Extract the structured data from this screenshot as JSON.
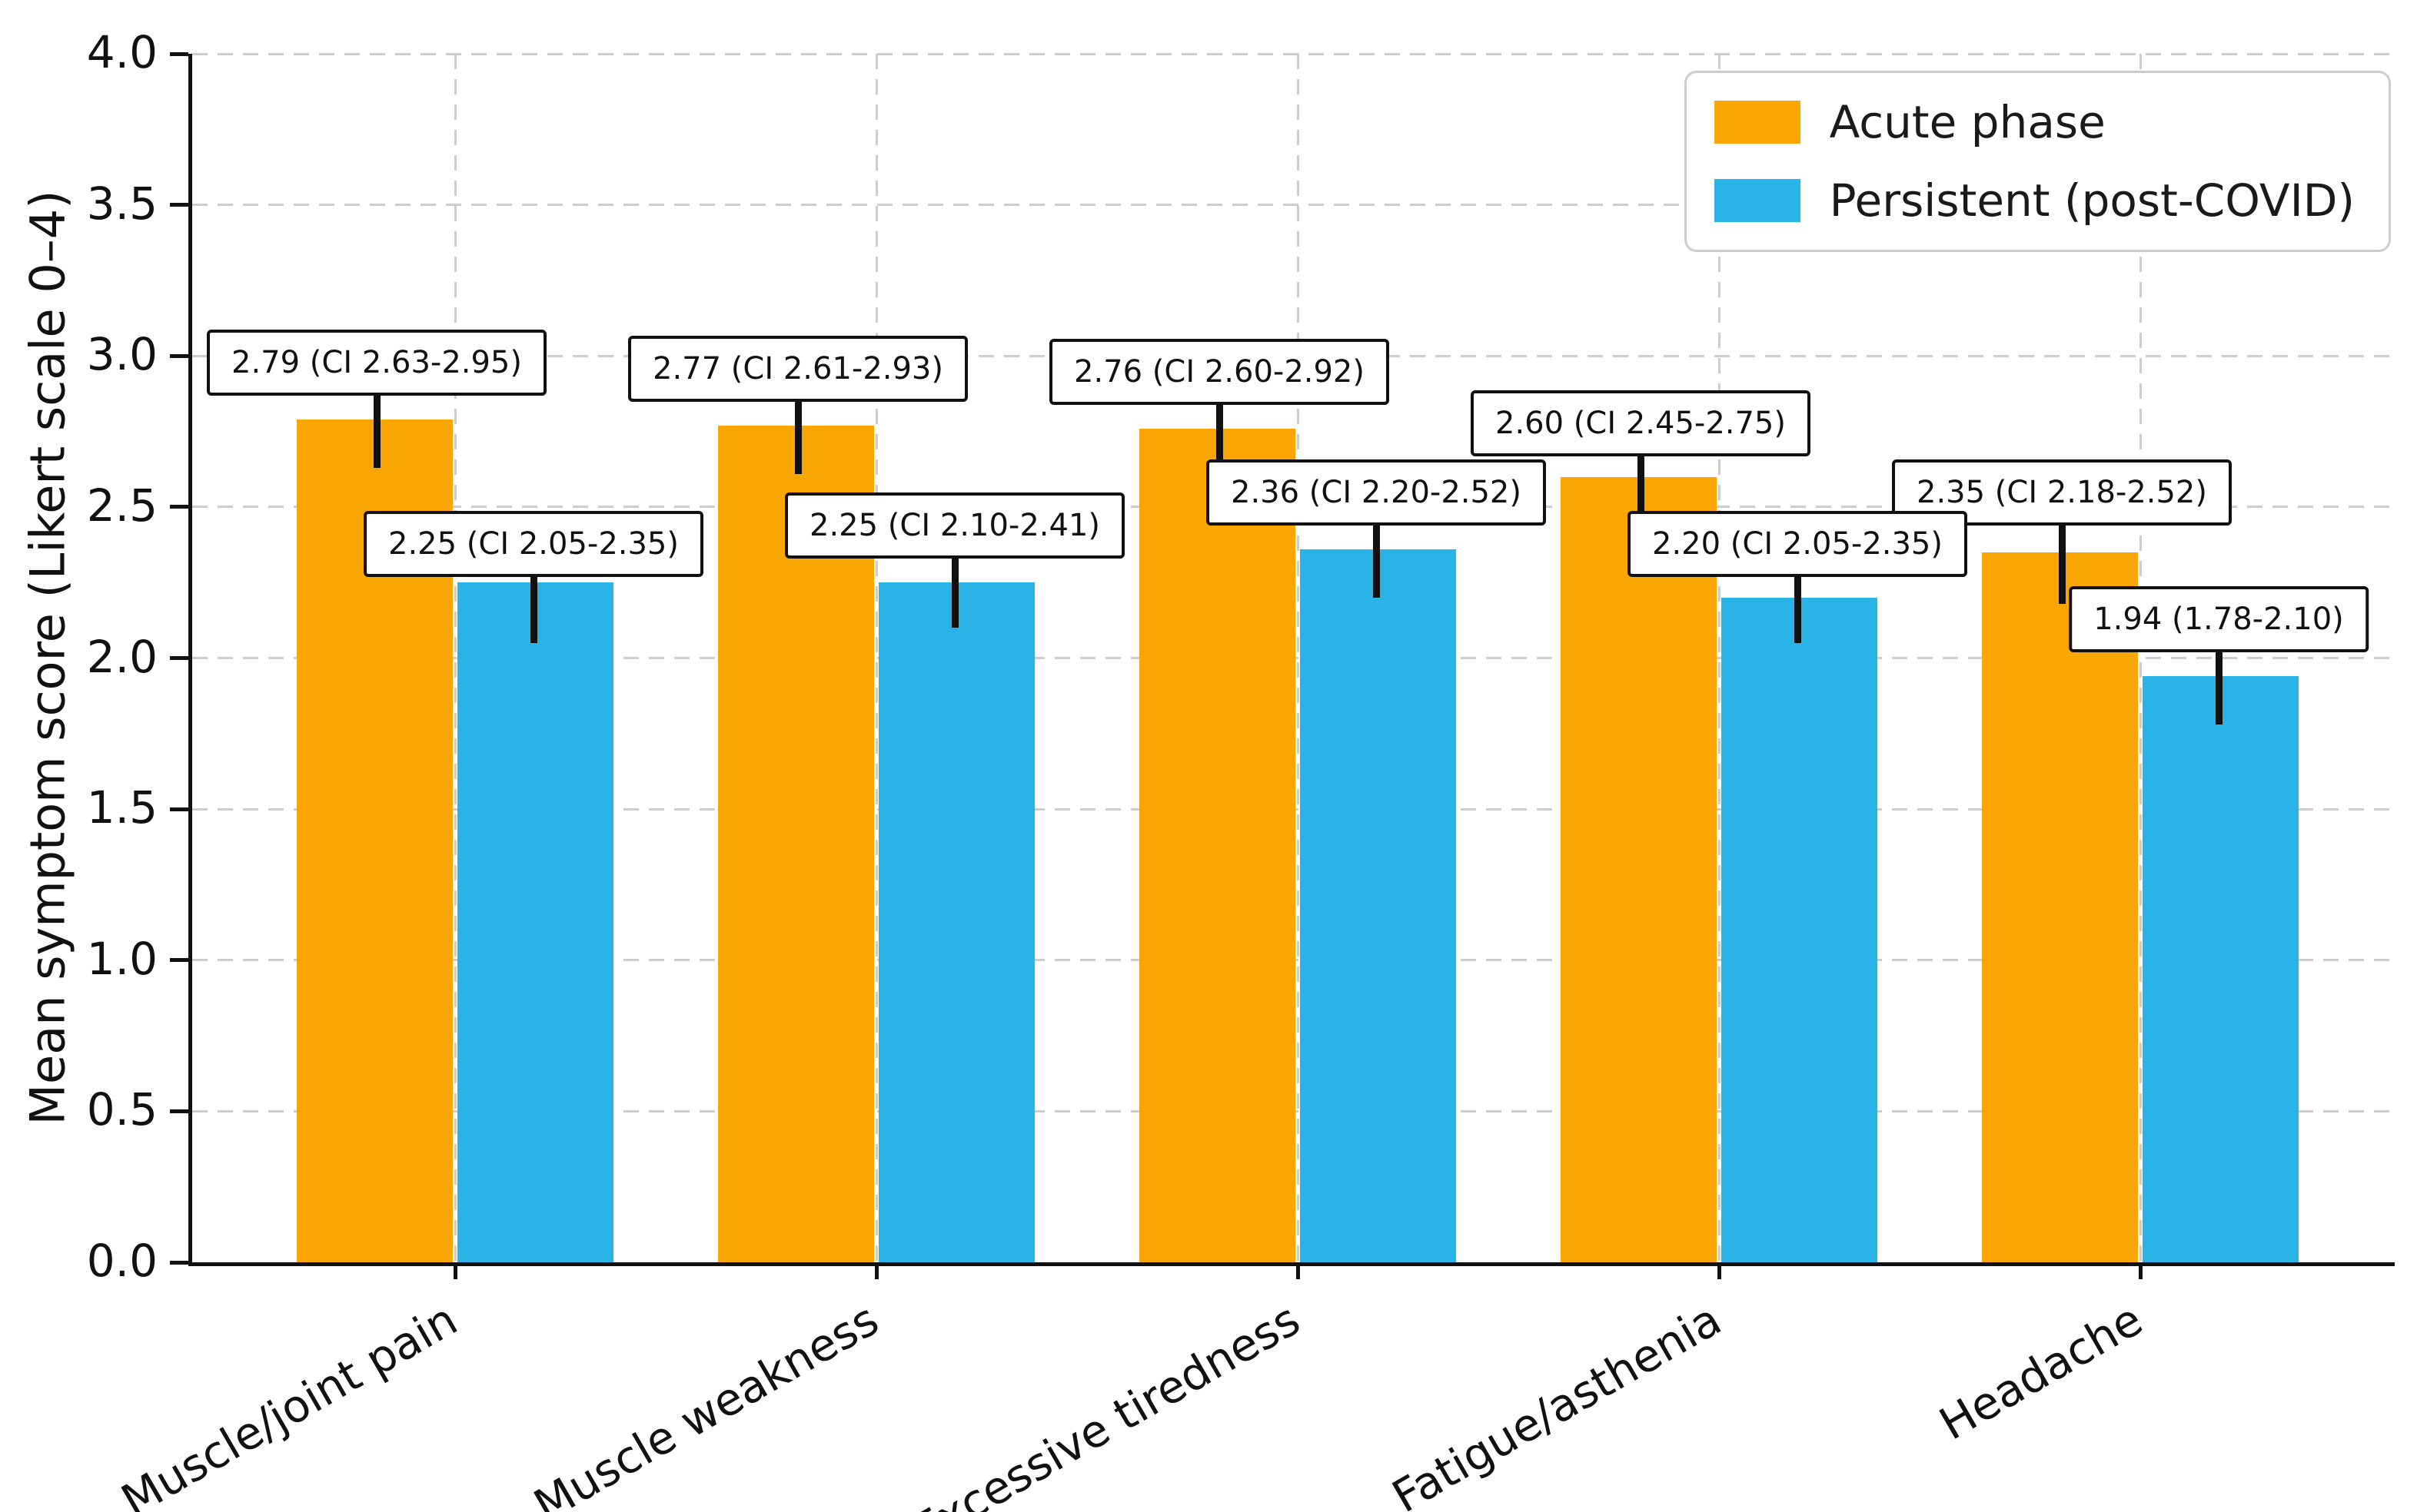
{
  "chart_data": {
    "type": "bar",
    "title": "",
    "xlabel": "",
    "ylabel": "Mean symptom score (Likert scale 0–4)",
    "ylim": [
      0.0,
      4.0
    ],
    "ytick_labels": [
      "0.0",
      "0.5",
      "1.0",
      "1.5",
      "2.0",
      "2.5",
      "3.0",
      "3.5",
      "4.0"
    ],
    "grid": {
      "horizontal": true,
      "vertical": true,
      "style": "dashed",
      "color": "#cdcdcd"
    },
    "legend": {
      "position": "upper right"
    },
    "categories": [
      "Muscle/joint pain",
      "Muscle weakness",
      "Excessive tiredness",
      "Fatigue/asthenia",
      "Headache"
    ],
    "series": [
      {
        "name": "Acute phase",
        "color": "#F9A602",
        "values": [
          2.79,
          2.77,
          2.76,
          2.6,
          2.35
        ],
        "ci_low": [
          2.63,
          2.61,
          2.6,
          2.45,
          2.18
        ],
        "ci_high": [
          2.95,
          2.93,
          2.92,
          2.75,
          2.52
        ],
        "annotations": [
          "2.79 (CI 2.63-2.95)",
          "2.77 (CI 2.61-2.93)",
          "2.76 (CI 2.60-2.92)",
          "2.60 (CI 2.45-2.75)",
          "2.35 (CI 2.18-2.52)"
        ]
      },
      {
        "name": "Persistent (post-COVID)",
        "color": "#29B3E6",
        "values": [
          2.25,
          2.25,
          2.36,
          2.2,
          1.94
        ],
        "ci_low": [
          2.05,
          2.1,
          2.2,
          2.05,
          1.78
        ],
        "ci_high": [
          2.35,
          2.41,
          2.52,
          2.35,
          2.1
        ],
        "annotations": [
          "2.25 (CI 2.05-2.35)",
          "2.25 (CI 2.10-2.41)",
          "2.36 (CI 2.20-2.52)",
          "2.20 (CI 2.05-2.35)",
          "1.94 (1.78-2.10)"
        ]
      }
    ],
    "error_bar_color": "#111111",
    "axis_color": "#111111"
  }
}
